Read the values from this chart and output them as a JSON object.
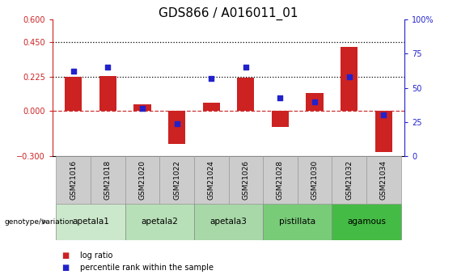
{
  "title": "GDS866 / A016011_01",
  "samples": [
    "GSM21016",
    "GSM21018",
    "GSM21020",
    "GSM21022",
    "GSM21024",
    "GSM21026",
    "GSM21028",
    "GSM21030",
    "GSM21032",
    "GSM21034"
  ],
  "log_ratio": [
    0.225,
    0.228,
    0.04,
    -0.22,
    0.055,
    0.215,
    -0.105,
    0.115,
    0.42,
    -0.27
  ],
  "percentile_rank": [
    62,
    65,
    35,
    24,
    57,
    65,
    43,
    40,
    58,
    30
  ],
  "groups": [
    {
      "label": "apetala1",
      "indices": [
        0,
        1
      ],
      "color": "#cce8cc"
    },
    {
      "label": "apetala2",
      "indices": [
        2,
        3
      ],
      "color": "#b8e0b8"
    },
    {
      "label": "apetala3",
      "indices": [
        4,
        5
      ],
      "color": "#a8d8a8"
    },
    {
      "label": "pistillata",
      "indices": [
        6,
        7
      ],
      "color": "#78cc78"
    },
    {
      "label": "agamous",
      "indices": [
        8,
        9
      ],
      "color": "#44bb44"
    }
  ],
  "ylim_left": [
    -0.3,
    0.6
  ],
  "ylim_right": [
    0,
    100
  ],
  "yticks_left": [
    -0.3,
    0.0,
    0.225,
    0.45,
    0.6
  ],
  "yticks_right": [
    0,
    25,
    50,
    75,
    100
  ],
  "hlines": [
    0.45,
    0.225
  ],
  "bar_color": "#cc2222",
  "dot_color": "#2222cc",
  "zero_line_color": "#cc3333",
  "bar_width": 0.5,
  "title_fontsize": 11,
  "tick_fontsize": 7,
  "sample_box_color": "#cccccc",
  "sample_box_edge": "#999999"
}
